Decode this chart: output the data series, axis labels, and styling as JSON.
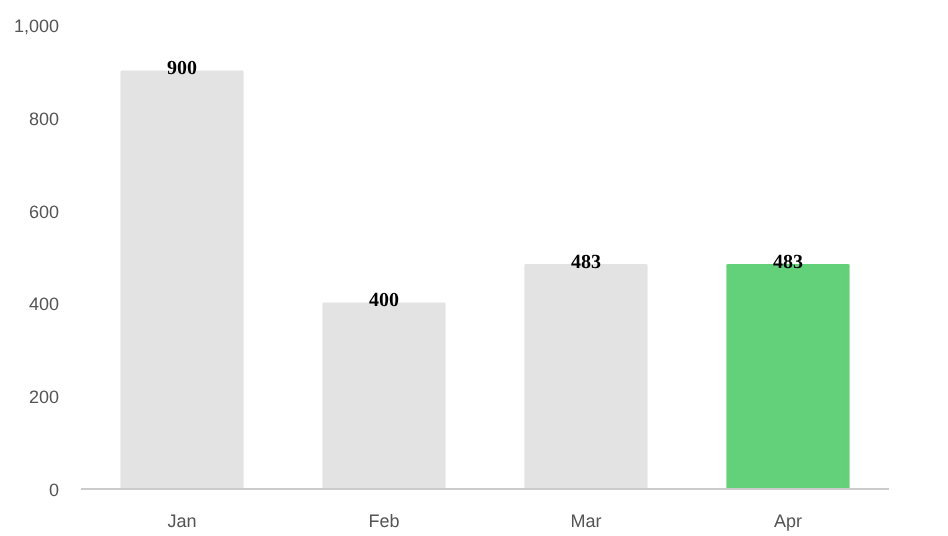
{
  "chart_data": {
    "type": "bar",
    "categories": [
      "Jan",
      "Feb",
      "Mar",
      "Apr"
    ],
    "values": [
      900,
      400,
      483,
      483
    ],
    "colors": [
      "#e3e3e3",
      "#e3e3e3",
      "#e3e3e3",
      "#63d17a"
    ],
    "ylim": [
      0,
      1000
    ],
    "yticks": [
      0,
      200,
      400,
      600,
      800,
      {
        "value": 1000,
        "label": "1,000"
      }
    ],
    "grid": false,
    "data_labels": true
  }
}
